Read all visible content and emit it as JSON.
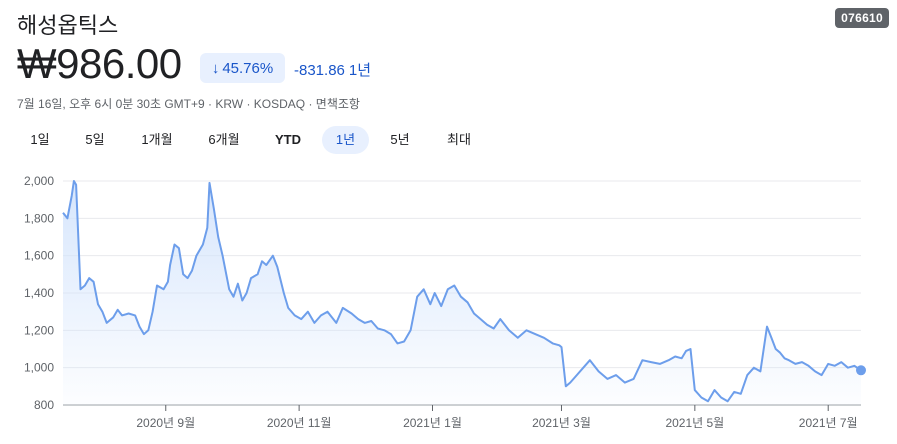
{
  "header": {
    "company_name": "해성옵틱스",
    "ticker": "076610",
    "price": "₩986.00",
    "change_percent": "45.76%",
    "change_direction": "down",
    "change_absolute": "-831.86",
    "change_period": "1년",
    "meta": "7월 16일, 오후 6시 0분 30초 GMT+9 · KRW · KOSDAQ · 면책조항"
  },
  "tabs": [
    {
      "label": "1일",
      "active": false
    },
    {
      "label": "5일",
      "active": false
    },
    {
      "label": "1개월",
      "active": false
    },
    {
      "label": "6개월",
      "active": false
    },
    {
      "label": "YTD",
      "active": false
    },
    {
      "label": "1년",
      "active": true
    },
    {
      "label": "5년",
      "active": false
    },
    {
      "label": "최대",
      "active": false
    }
  ],
  "colors": {
    "line": "#6d9eeb",
    "fill_top": "#d2e3fc",
    "accent_blue": "#1a56c9",
    "grid": "#e8eaed"
  },
  "chart_data": {
    "type": "area",
    "ylim": [
      800,
      2000
    ],
    "y_ticks": [
      "2,000",
      "1,800",
      "1,600",
      "1,400",
      "1,200",
      "1,000",
      "800"
    ],
    "y_tick_values": [
      2000,
      1800,
      1600,
      1400,
      1200,
      1000,
      800
    ],
    "x_ticks": [
      "2020년 9월",
      "2020년 11월",
      "2021년 1월",
      "2021년 3월",
      "2021년 5월",
      "2021년 7월"
    ],
    "x_tick_dates": [
      "2020-09-01",
      "2020-11-01",
      "2021-01-01",
      "2021-03-01",
      "2021-05-01",
      "2021-07-01"
    ],
    "x_start": "2020-07-16",
    "x_end": "2021-07-16",
    "grid": true,
    "series": [
      {
        "dates": [
          "2020-07-16",
          "2020-07-18",
          "2020-07-20",
          "2020-07-21",
          "2020-07-22",
          "2020-07-24",
          "2020-07-26",
          "2020-07-28",
          "2020-07-30",
          "2020-08-01",
          "2020-08-03",
          "2020-08-05",
          "2020-08-08",
          "2020-08-10",
          "2020-08-12",
          "2020-08-15",
          "2020-08-18",
          "2020-08-20",
          "2020-08-22",
          "2020-08-24",
          "2020-08-26",
          "2020-08-28",
          "2020-08-31",
          "2020-09-02",
          "2020-09-03",
          "2020-09-05",
          "2020-09-07",
          "2020-09-09",
          "2020-09-11",
          "2020-09-13",
          "2020-09-15",
          "2020-09-18",
          "2020-09-20",
          "2020-09-21",
          "2020-09-23",
          "2020-09-25",
          "2020-09-27",
          "2020-09-30",
          "2020-10-02",
          "2020-10-04",
          "2020-10-06",
          "2020-10-08",
          "2020-10-10",
          "2020-10-13",
          "2020-10-15",
          "2020-10-17",
          "2020-10-20",
          "2020-10-22",
          "2020-10-25",
          "2020-10-27",
          "2020-10-30",
          "2020-11-02",
          "2020-11-05",
          "2020-11-08",
          "2020-11-11",
          "2020-11-14",
          "2020-11-18",
          "2020-11-21",
          "2020-11-25",
          "2020-11-28",
          "2020-12-01",
          "2020-12-04",
          "2020-12-07",
          "2020-12-10",
          "2020-12-13",
          "2020-12-16",
          "2020-12-19",
          "2020-12-22",
          "2020-12-25",
          "2020-12-28",
          "2020-12-31",
          "2021-01-02",
          "2021-01-05",
          "2021-01-08",
          "2021-01-11",
          "2021-01-14",
          "2021-01-17",
          "2021-01-20",
          "2021-01-23",
          "2021-01-26",
          "2021-01-29",
          "2021-02-01",
          "2021-02-05",
          "2021-02-09",
          "2021-02-13",
          "2021-02-17",
          "2021-02-21",
          "2021-02-25",
          "2021-02-28",
          "2021-03-01",
          "2021-03-03",
          "2021-03-05",
          "2021-03-08",
          "2021-03-11",
          "2021-03-14",
          "2021-03-18",
          "2021-03-22",
          "2021-03-26",
          "2021-03-30",
          "2021-04-03",
          "2021-04-07",
          "2021-04-11",
          "2021-04-15",
          "2021-04-19",
          "2021-04-22",
          "2021-04-25",
          "2021-04-27",
          "2021-04-29",
          "2021-05-01",
          "2021-05-04",
          "2021-05-07",
          "2021-05-10",
          "2021-05-13",
          "2021-05-16",
          "2021-05-19",
          "2021-05-22",
          "2021-05-25",
          "2021-05-28",
          "2021-05-31",
          "2021-06-03",
          "2021-06-05",
          "2021-06-07",
          "2021-06-09",
          "2021-06-11",
          "2021-06-13",
          "2021-06-16",
          "2021-06-19",
          "2021-06-22",
          "2021-06-25",
          "2021-06-28",
          "2021-07-01",
          "2021-07-04",
          "2021-07-07",
          "2021-07-10",
          "2021-07-13",
          "2021-07-16"
        ],
        "values": [
          1830,
          1800,
          1920,
          2000,
          1980,
          1420,
          1440,
          1480,
          1460,
          1340,
          1300,
          1240,
          1270,
          1310,
          1280,
          1290,
          1280,
          1220,
          1180,
          1200,
          1300,
          1440,
          1420,
          1460,
          1550,
          1660,
          1640,
          1500,
          1480,
          1520,
          1600,
          1660,
          1750,
          1990,
          1850,
          1700,
          1600,
          1420,
          1380,
          1450,
          1360,
          1400,
          1480,
          1500,
          1570,
          1550,
          1600,
          1540,
          1400,
          1320,
          1280,
          1260,
          1300,
          1240,
          1280,
          1300,
          1240,
          1320,
          1290,
          1260,
          1240,
          1250,
          1210,
          1200,
          1180,
          1130,
          1140,
          1200,
          1380,
          1420,
          1340,
          1400,
          1330,
          1420,
          1440,
          1380,
          1350,
          1290,
          1260,
          1230,
          1210,
          1260,
          1200,
          1160,
          1200,
          1180,
          1160,
          1130,
          1120,
          1110,
          900,
          920,
          960,
          1000,
          1040,
          980,
          940,
          960,
          920,
          940,
          1040,
          1030,
          1020,
          1040,
          1060,
          1050,
          1090,
          1100,
          880,
          840,
          820,
          880,
          840,
          820,
          870,
          860,
          960,
          1000,
          980,
          1220,
          1160,
          1100,
          1080,
          1050,
          1040,
          1020,
          1030,
          1010,
          980,
          960,
          1020,
          1010,
          1030,
          1000,
          1010,
          986
        ]
      }
    ]
  }
}
